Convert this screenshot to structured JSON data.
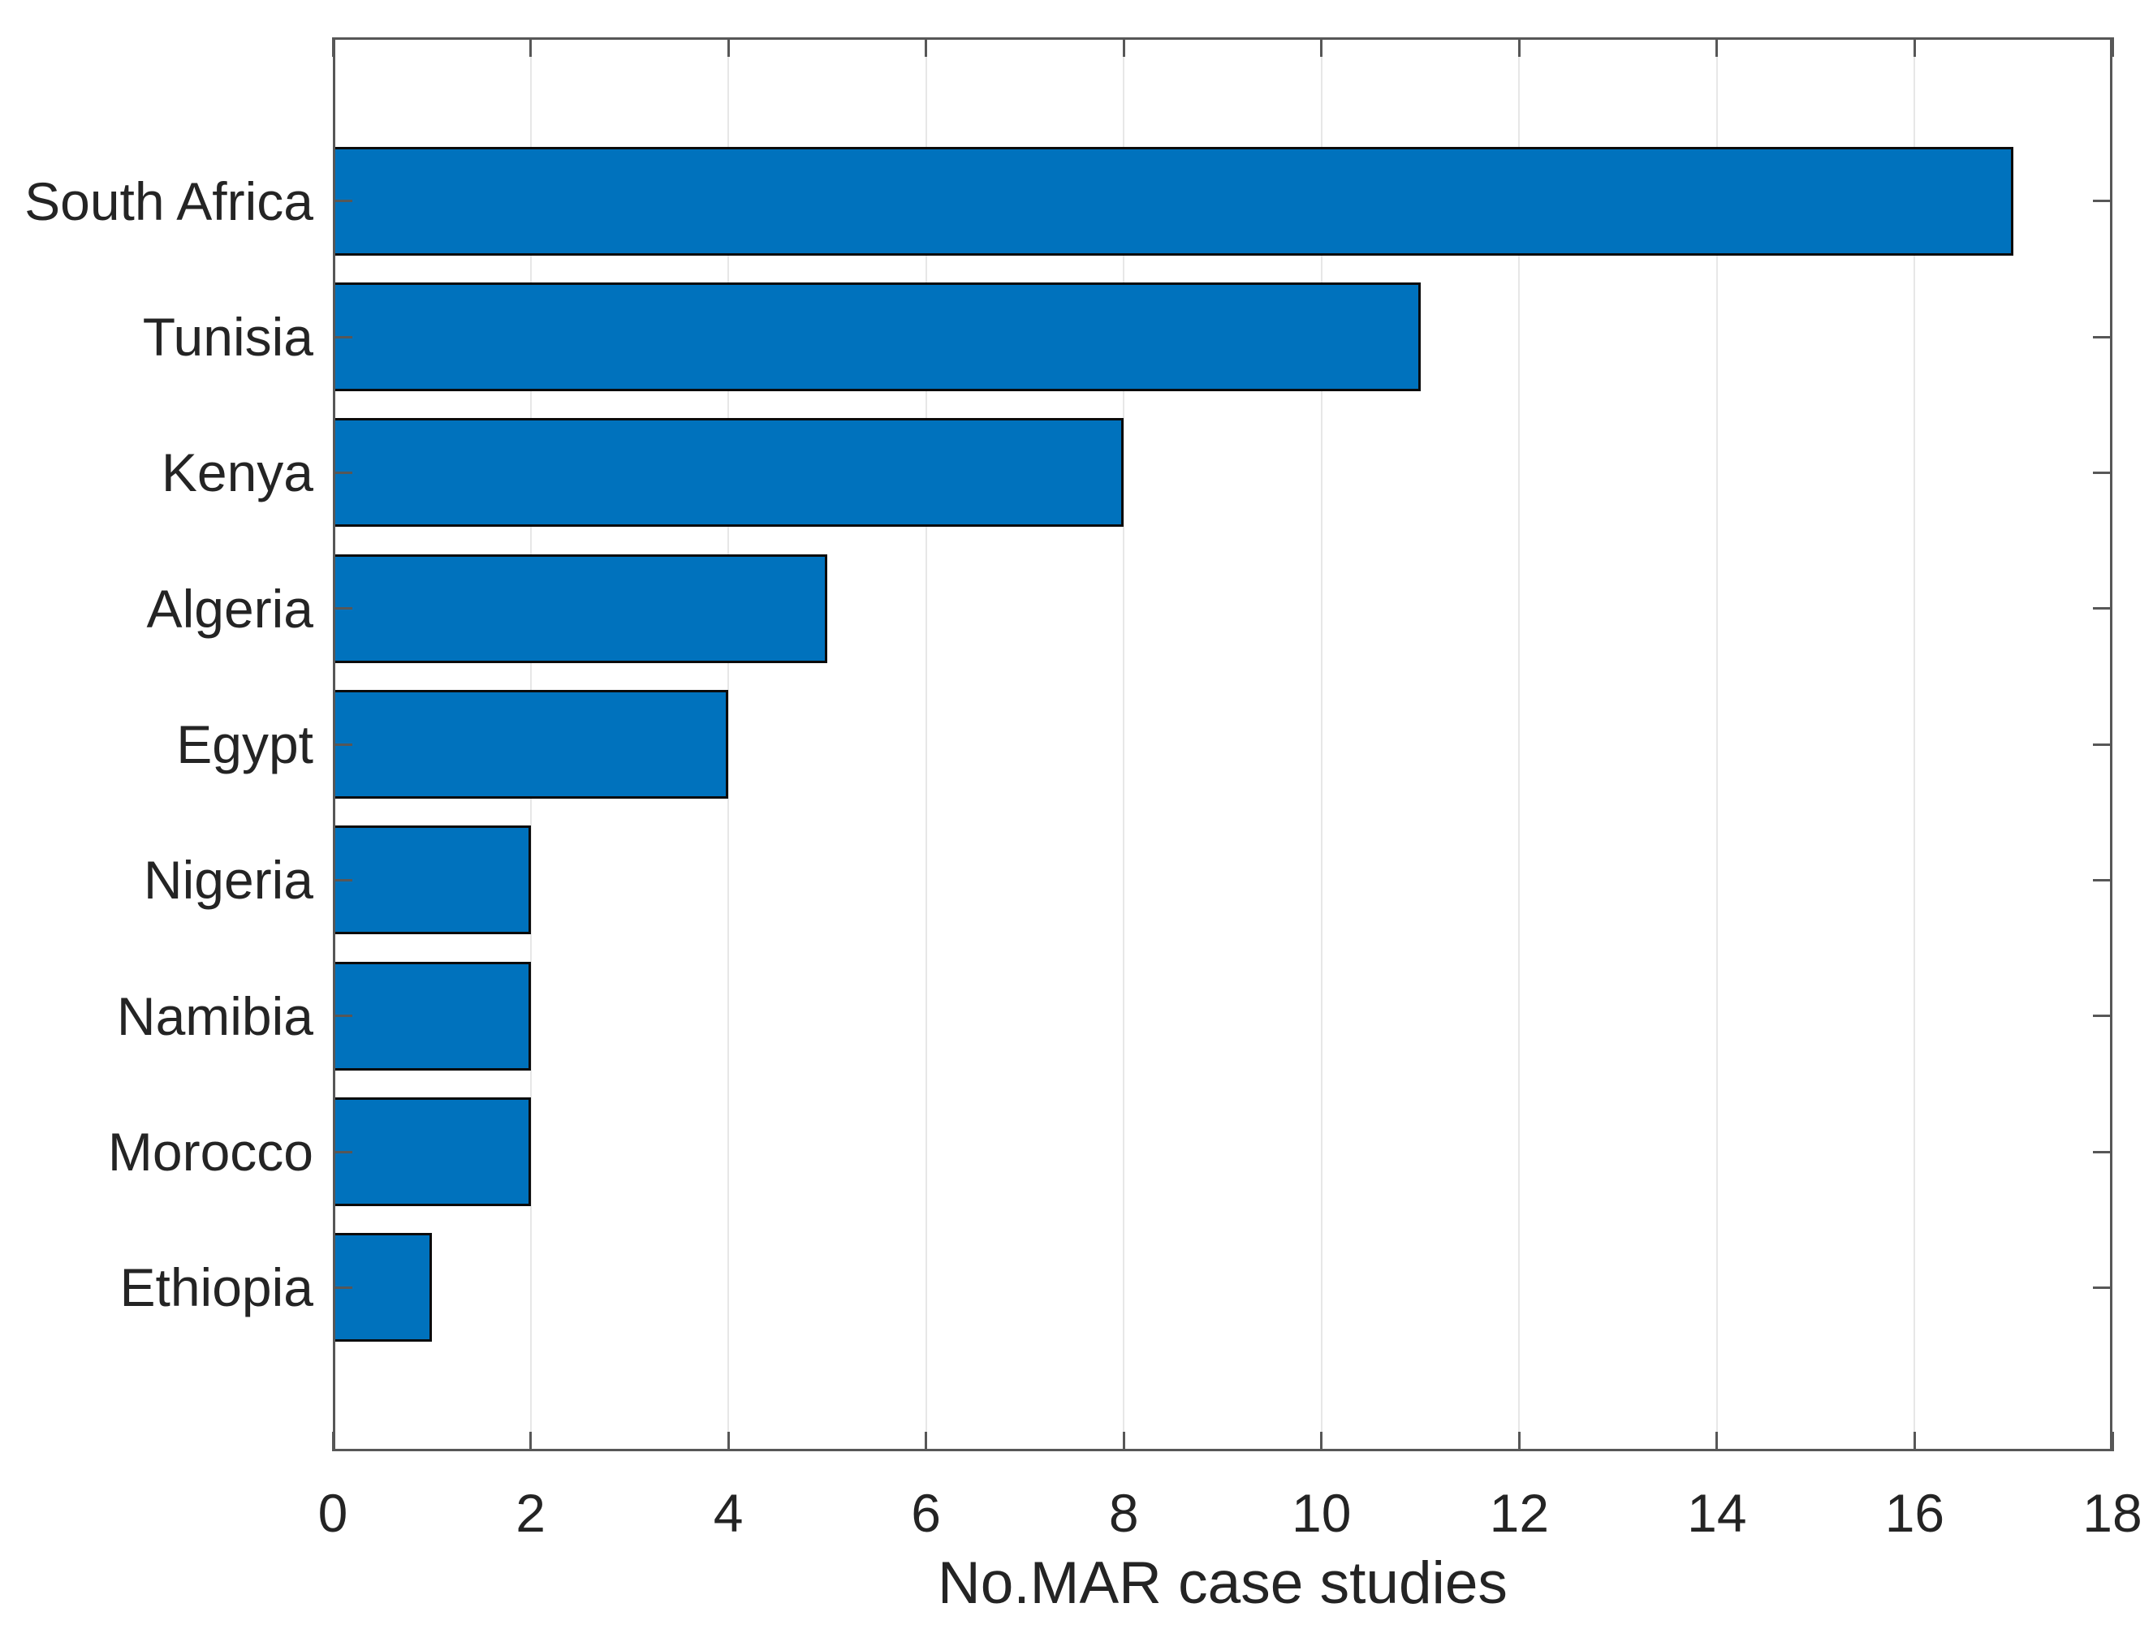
{
  "figure": {
    "background": "#ffffff"
  },
  "chart_data": {
    "type": "bar",
    "orientation": "horizontal",
    "title": "",
    "xlabel": "No.MAR case studies",
    "ylabel": "",
    "categories": [
      "South Africa",
      "Tunisia",
      "Kenya",
      "Algeria",
      "Egypt",
      "Nigeria",
      "Namibia",
      "Morocco",
      "Ethiopia"
    ],
    "values": [
      17,
      11,
      8,
      5,
      4,
      2,
      2,
      2,
      1
    ],
    "xlim": [
      0,
      18
    ],
    "x_ticks": [
      0,
      2,
      4,
      6,
      8,
      10,
      12,
      14,
      16,
      18
    ],
    "grid": "vertical-gridlines-on",
    "legend": "none",
    "bar_color": "#0072BD",
    "bar_edge_color": "#0b0b0b",
    "axis_color": "#575757",
    "grid_color": "#e7e7e7",
    "text_color": "#242424"
  }
}
